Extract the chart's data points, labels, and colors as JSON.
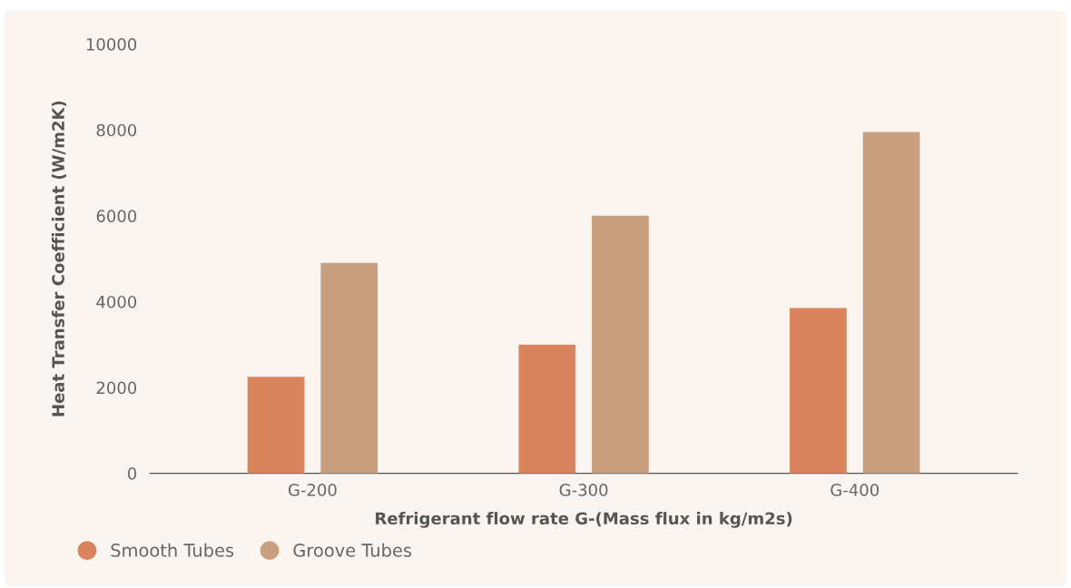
{
  "chart_data": {
    "type": "bar",
    "xlabel": "Refrigerant flow rate G-(Mass flux in kg/m2s)",
    "ylabel": "Heat Transfer Coefficient (W/m2K)",
    "categories": [
      "G-200",
      "G-300",
      "G-400"
    ],
    "series": [
      {
        "name": "Smooth Tubes",
        "color": "#d9845c",
        "values": [
          2250,
          3000,
          3850
        ]
      },
      {
        "name": "Groove Tubes",
        "color": "#c9a07f",
        "values": [
          4900,
          6000,
          7950
        ]
      }
    ],
    "ylim": [
      0,
      10000
    ],
    "yticks": [
      0,
      2000,
      4000,
      6000,
      8000,
      10000
    ],
    "grid": false,
    "legend": "bottom left"
  }
}
